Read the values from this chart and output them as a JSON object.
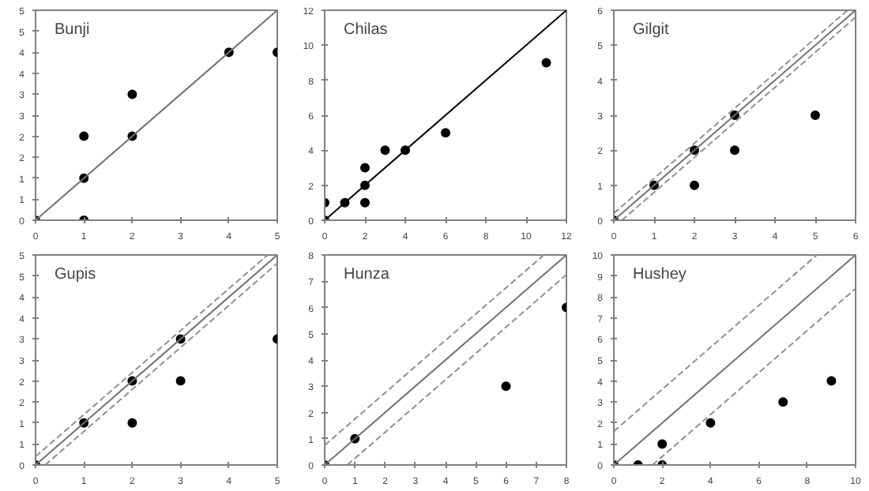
{
  "chart_data": [
    {
      "type": "scatter",
      "title": "Bunji",
      "grid": false,
      "xlim": [
        0,
        5
      ],
      "ylim": [
        0,
        5
      ],
      "xticks": [
        0,
        1,
        2,
        3,
        4,
        5
      ],
      "yticks": [
        0,
        {
          "value": 0.5,
          "label": "1"
        },
        1,
        {
          "value": 1.5,
          "label": "2"
        },
        2,
        {
          "value": 2.5,
          "label": "3"
        },
        3,
        {
          "value": 3.5,
          "label": "4"
        },
        4,
        {
          "value": 4.5,
          "label": "5"
        },
        5
      ],
      "series": [
        {
          "marker": "circle",
          "color": "#000000",
          "x": [
            0,
            1,
            1,
            1,
            2,
            2,
            4,
            5
          ],
          "values": [
            0,
            0,
            1,
            2,
            2,
            3,
            4,
            4
          ]
        },
        {
          "type": "line",
          "color": "#707070",
          "line_style": "solid",
          "x": [
            0,
            5
          ],
          "values": [
            0,
            5
          ]
        }
      ]
    },
    {
      "type": "scatter",
      "title": "Chilas",
      "grid": false,
      "xlim": [
        0,
        12
      ],
      "ylim": [
        0,
        12
      ],
      "xticks": [
        0,
        2,
        4,
        6,
        8,
        10,
        12
      ],
      "yticks": [
        0,
        2,
        4,
        6,
        8,
        10,
        12
      ],
      "series": [
        {
          "marker": "circle",
          "color": "#000000",
          "x": [
            0,
            0,
            1,
            2,
            2,
            2,
            3,
            4,
            6,
            11
          ],
          "values": [
            0,
            1,
            1,
            1,
            2,
            3,
            4,
            4,
            5,
            9
          ]
        },
        {
          "type": "line",
          "color": "#000000",
          "line_style": "solid",
          "x": [
            0,
            12
          ],
          "values": [
            0,
            12
          ]
        }
      ]
    },
    {
      "type": "scatter",
      "title": "Gilgit",
      "grid": false,
      "xlim": [
        0,
        6
      ],
      "ylim": [
        0,
        6
      ],
      "xticks": [
        0,
        1,
        2,
        3,
        4,
        5,
        6
      ],
      "yticks": [
        0,
        1,
        2,
        3,
        4,
        5,
        6
      ],
      "series": [
        {
          "marker": "circle",
          "color": "#000000",
          "x": [
            0,
            1,
            2,
            2,
            3,
            3,
            5
          ],
          "values": [
            0,
            1,
            1,
            2,
            2,
            3,
            3
          ]
        },
        {
          "type": "line",
          "color": "#707070",
          "line_style": "solid",
          "x": [
            0,
            6
          ],
          "values": [
            0,
            6
          ]
        },
        {
          "type": "line",
          "color": "#909090",
          "line_style": "dashed",
          "x": [
            0,
            5.8
          ],
          "values": [
            0.2,
            6
          ]
        },
        {
          "type": "line",
          "color": "#909090",
          "line_style": "dashed",
          "x": [
            0.2,
            6
          ],
          "values": [
            0,
            5.8
          ]
        }
      ]
    },
    {
      "type": "scatter",
      "title": "Gupis",
      "grid": false,
      "xlim": [
        0,
        5
      ],
      "ylim": [
        0,
        5
      ],
      "xticks": [
        0,
        1,
        2,
        3,
        4,
        5
      ],
      "yticks": [
        0,
        {
          "value": 0.5,
          "label": "1"
        },
        1,
        {
          "value": 1.5,
          "label": "2"
        },
        2,
        {
          "value": 2.5,
          "label": "3"
        },
        3,
        {
          "value": 3.5,
          "label": "4"
        },
        4,
        {
          "value": 4.5,
          "label": "5"
        },
        5
      ],
      "series": [
        {
          "marker": "circle",
          "color": "#000000",
          "x": [
            0,
            1,
            2,
            2,
            3,
            3,
            5
          ],
          "values": [
            0,
            1,
            1,
            2,
            2,
            3,
            3
          ]
        },
        {
          "type": "line",
          "color": "#707070",
          "line_style": "solid",
          "x": [
            0,
            5
          ],
          "values": [
            0,
            5
          ]
        },
        {
          "type": "line",
          "color": "#909090",
          "line_style": "dashed",
          "x": [
            0,
            4.8
          ],
          "values": [
            0.2,
            5
          ]
        },
        {
          "type": "line",
          "color": "#909090",
          "line_style": "dashed",
          "x": [
            0.2,
            5
          ],
          "values": [
            0,
            4.8
          ]
        }
      ]
    },
    {
      "type": "scatter",
      "title": "Hunza",
      "grid": false,
      "xlim": [
        0,
        8
      ],
      "ylim": [
        0,
        8
      ],
      "xticks": [
        0,
        1,
        2,
        3,
        4,
        5,
        6,
        7,
        8
      ],
      "yticks": [
        0,
        1,
        2,
        3,
        4,
        5,
        6,
        7,
        8
      ],
      "series": [
        {
          "marker": "circle",
          "color": "#000000",
          "x": [
            0,
            1,
            6,
            8
          ],
          "values": [
            0,
            1,
            3,
            6
          ]
        },
        {
          "type": "line",
          "color": "#707070",
          "line_style": "solid",
          "x": [
            0,
            8
          ],
          "values": [
            0,
            8
          ]
        },
        {
          "type": "line",
          "color": "#909090",
          "line_style": "dashed",
          "x": [
            0,
            7.25
          ],
          "values": [
            0.75,
            8
          ]
        },
        {
          "type": "line",
          "color": "#909090",
          "line_style": "dashed",
          "x": [
            0.75,
            8
          ],
          "values": [
            0,
            7.25
          ]
        }
      ]
    },
    {
      "type": "scatter",
      "title": "Hushey",
      "grid": false,
      "xlim": [
        0,
        10
      ],
      "ylim": [
        0,
        10
      ],
      "xticks": [
        0,
        2,
        4,
        6,
        8,
        10
      ],
      "yticks": [
        0,
        1,
        2,
        3,
        4,
        5,
        6,
        7,
        8,
        9,
        10
      ],
      "series": [
        {
          "marker": "circle",
          "color": "#000000",
          "x": [
            0,
            1,
            2,
            2,
            4,
            7,
            9
          ],
          "values": [
            0,
            0,
            0,
            1,
            2,
            3,
            4
          ]
        },
        {
          "type": "line",
          "color": "#707070",
          "line_style": "solid",
          "x": [
            0,
            10
          ],
          "values": [
            0,
            10
          ]
        },
        {
          "type": "line",
          "color": "#909090",
          "line_style": "dashed",
          "x": [
            0,
            8.4
          ],
          "values": [
            1.6,
            10
          ]
        },
        {
          "type": "line",
          "color": "#909090",
          "line_style": "dashed",
          "x": [
            1.6,
            10
          ],
          "values": [
            0,
            8.4
          ]
        }
      ]
    }
  ]
}
